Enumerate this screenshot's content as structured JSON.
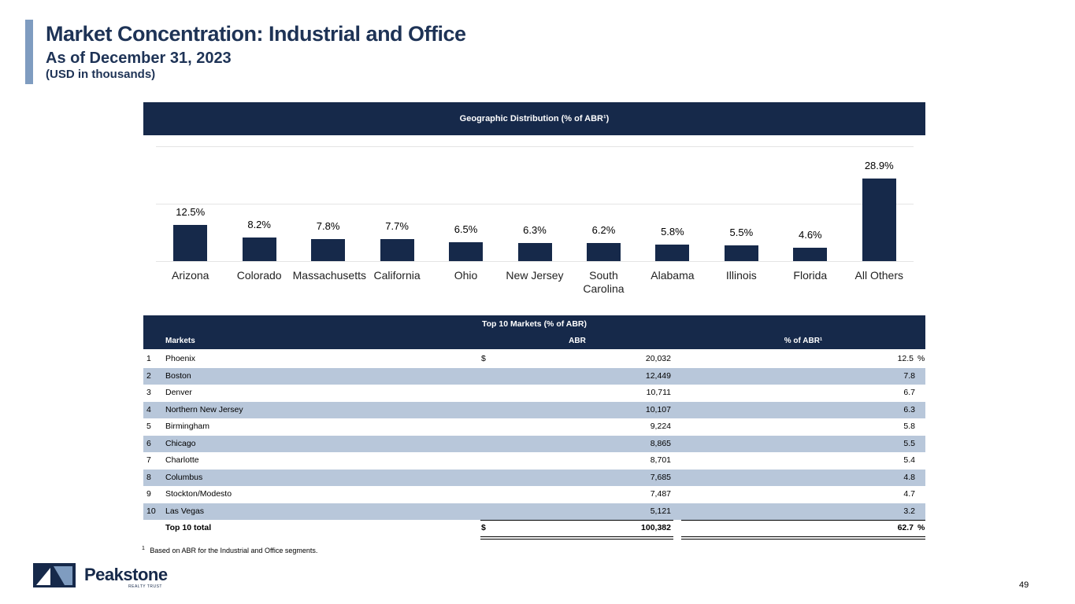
{
  "header": {
    "title": "Market Concentration: Industrial and Office",
    "subtitle": "As of December 31, 2023",
    "units": "(USD in thousands)"
  },
  "chart_data": {
    "type": "bar",
    "title": "Geographic Distribution (% of ABR¹)",
    "categories": [
      "Arizona",
      "Colorado",
      "Massachusetts",
      "California",
      "Ohio",
      "New Jersey",
      "South Carolina",
      "Alabama",
      "Illinois",
      "Florida",
      "All Others"
    ],
    "values": [
      12.5,
      8.2,
      7.8,
      7.7,
      6.5,
      6.3,
      6.2,
      5.8,
      5.5,
      4.6,
      28.9
    ],
    "value_labels": [
      "12.5%",
      "8.2%",
      "7.8%",
      "7.7%",
      "6.5%",
      "6.3%",
      "6.2%",
      "5.8%",
      "5.5%",
      "4.6%",
      "28.9%"
    ],
    "color": "#16294a",
    "ylim": [
      0,
      40
    ],
    "yticks": [
      0,
      20,
      40
    ],
    "grid": true
  },
  "table": {
    "title": "Top 10 Markets (% of ABR)",
    "columns": [
      "Markets",
      "ABR",
      "% of ABR¹"
    ],
    "rows": [
      {
        "rank": "1",
        "market": "Phoenix",
        "currency": "$",
        "abr": "20,032",
        "pct": "12.5",
        "unit": "%"
      },
      {
        "rank": "2",
        "market": "Boston",
        "abr": "12,449",
        "pct": "7.8"
      },
      {
        "rank": "3",
        "market": "Denver",
        "abr": "10,711",
        "pct": "6.7"
      },
      {
        "rank": "4",
        "market": "Northern New Jersey",
        "abr": "10,107",
        "pct": "6.3"
      },
      {
        "rank": "5",
        "market": "Birmingham",
        "abr": "9,224",
        "pct": "5.8"
      },
      {
        "rank": "6",
        "market": "Chicago",
        "abr": "8,865",
        "pct": "5.5"
      },
      {
        "rank": "7",
        "market": "Charlotte",
        "abr": "8,701",
        "pct": "5.4"
      },
      {
        "rank": "8",
        "market": "Columbus",
        "abr": "7,685",
        "pct": "4.8"
      },
      {
        "rank": "9",
        "market": "Stockton/Modesto",
        "abr": "7,487",
        "pct": "4.7"
      },
      {
        "rank": "10",
        "market": "Las Vegas",
        "abr": "5,121",
        "pct": "3.2"
      }
    ],
    "total": {
      "market": "Top 10 total",
      "currency": "$",
      "abr": "100,382",
      "pct": "62.7",
      "unit": "%"
    }
  },
  "footnote": {
    "mark": "1",
    "text": "Based on ABR for the Industrial and Office segments."
  },
  "logo": {
    "name": "Peakstone",
    "tagline": "REALTY TRUST"
  },
  "page_number": "49"
}
